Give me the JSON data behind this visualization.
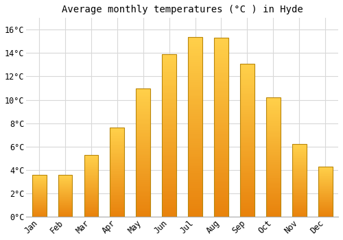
{
  "title": "Average monthly temperatures (°C ) in Hyde",
  "months": [
    "Jan",
    "Feb",
    "Mar",
    "Apr",
    "May",
    "Jun",
    "Jul",
    "Aug",
    "Sep",
    "Oct",
    "Nov",
    "Dec"
  ],
  "values": [
    3.6,
    3.6,
    5.3,
    7.6,
    11.0,
    13.9,
    15.4,
    15.3,
    13.1,
    10.2,
    6.2,
    4.3
  ],
  "bar_color_bottom": "#E8820C",
  "bar_color_top": "#FFD04A",
  "bar_edge_color": "#B8860B",
  "plot_bg_color": "#ffffff",
  "fig_bg_color": "#ffffff",
  "grid_color": "#d8d8d8",
  "ylim": [
    0,
    17
  ],
  "yticks": [
    0,
    2,
    4,
    6,
    8,
    10,
    12,
    14,
    16
  ],
  "ytick_labels": [
    "0°C",
    "2°C",
    "4°C",
    "6°C",
    "8°C",
    "10°C",
    "12°C",
    "14°C",
    "16°C"
  ],
  "title_fontsize": 10,
  "tick_fontsize": 8.5,
  "font_family": "monospace",
  "bar_width": 0.55
}
